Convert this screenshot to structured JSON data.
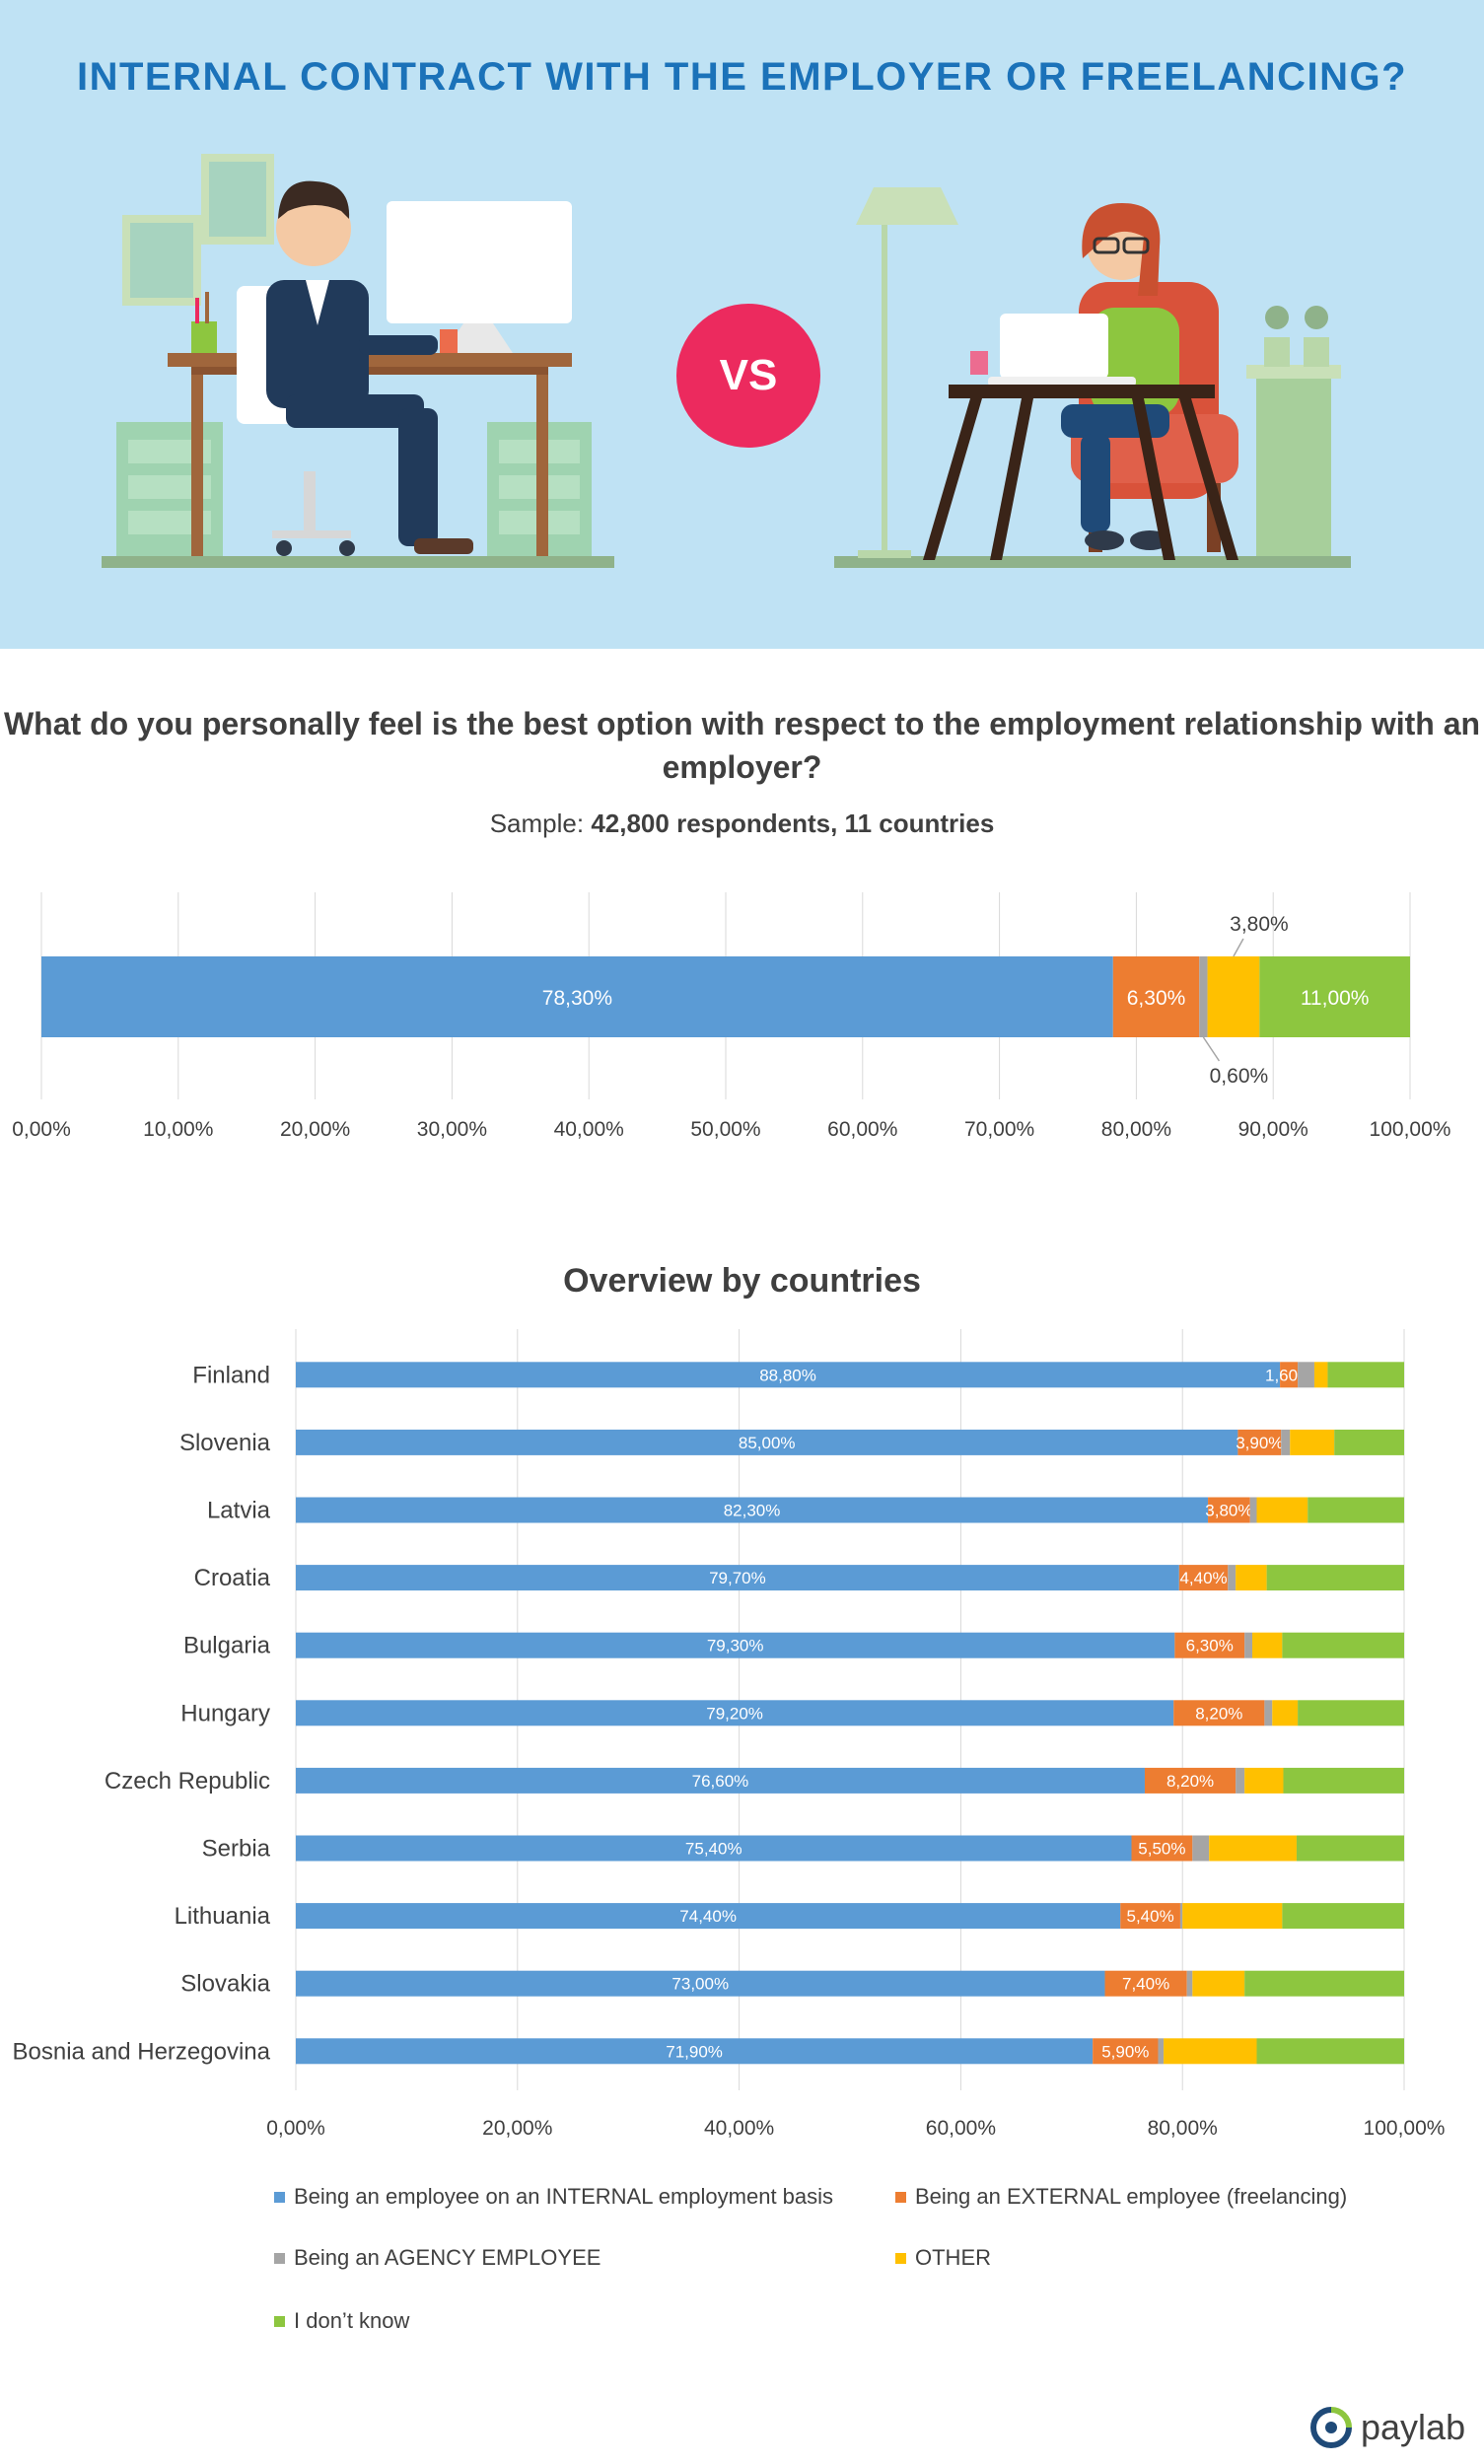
{
  "title": "INTERNAL CONTRACT WITH THE EMPLOYER OR FREELANCING?",
  "vs_label": "VS",
  "question": "What do you personally feel is the best option with respect to the employment relationship with an employer?",
  "sample_label": "Sample:",
  "sample_value": "42,800 respondents, 11 countries",
  "overview_title": "Overview by countries",
  "logo_text": "paylab",
  "colors": {
    "internal": "#5b9bd5",
    "external": "#ed7d31",
    "agency": "#a5a5a5",
    "other": "#ffc000",
    "dontknow": "#8dc63f",
    "title_blue": "#1b72b9",
    "vs_pink": "#ec2a5e",
    "hero_bg": "#bfe2f4"
  },
  "legend": [
    {
      "key": "internal",
      "label": "Being an employee on an INTERNAL employment basis"
    },
    {
      "key": "external",
      "label": "Being an EXTERNAL employee (freelancing)"
    },
    {
      "key": "agency",
      "label": "Being an AGENCY EMPLOYEE"
    },
    {
      "key": "other",
      "label": "OTHER"
    },
    {
      "key": "dontknow",
      "label": "I don’t know"
    }
  ],
  "chart_data": [
    {
      "type": "bar",
      "orientation": "horizontal-stacked",
      "title": "",
      "xlim": [
        0,
        100
      ],
      "x_ticks": [
        "0,00%",
        "10,00%",
        "20,00%",
        "30,00%",
        "40,00%",
        "50,00%",
        "60,00%",
        "70,00%",
        "80,00%",
        "90,00%",
        "100,00%"
      ],
      "grid": true,
      "series": [
        {
          "key": "internal",
          "value": 78.3,
          "label": "78,30%"
        },
        {
          "key": "external",
          "value": 6.3,
          "label": "6,30%"
        },
        {
          "key": "agency",
          "value": 0.6,
          "label": "0,60%"
        },
        {
          "key": "other",
          "value": 3.8,
          "label": "3,80%"
        },
        {
          "key": "dontknow",
          "value": 11.0,
          "label": "11,00%"
        }
      ]
    },
    {
      "type": "bar",
      "orientation": "horizontal-stacked",
      "title": "Overview by countries",
      "xlim": [
        0,
        100
      ],
      "x_ticks": [
        "0,00%",
        "20,00%",
        "40,00%",
        "60,00%",
        "80,00%",
        "100,00%"
      ],
      "grid": true,
      "legend": "bottom",
      "categories": [
        "Finland",
        "Slovenia",
        "Latvia",
        "Croatia",
        "Bulgaria",
        "Hungary",
        "Czech Republic",
        "Serbia",
        "Lithuania",
        "Slovakia",
        "Bosnia and Herzegovina"
      ],
      "series": [
        {
          "key": "internal",
          "values": [
            88.8,
            85.0,
            82.3,
            79.7,
            79.3,
            79.2,
            76.6,
            75.4,
            74.4,
            73.0,
            71.9
          ],
          "labels": [
            "88,80%",
            "85,00%",
            "82,30%",
            "79,70%",
            "79,30%",
            "79,20%",
            "76,60%",
            "75,40%",
            "74,40%",
            "73,00%",
            "71,90%"
          ]
        },
        {
          "key": "external",
          "values": [
            1.6,
            3.9,
            3.8,
            4.4,
            6.3,
            8.2,
            8.2,
            5.5,
            5.4,
            7.4,
            5.9
          ],
          "labels": [
            "1,60%",
            "3,90%",
            "3,80%",
            "4,40%",
            "6,30%",
            "8,20%",
            "8,20%",
            "5,50%",
            "5,40%",
            "7,40%",
            "5,90%"
          ]
        },
        {
          "key": "agency",
          "values": [
            1.5,
            0.8,
            0.6,
            0.7,
            0.7,
            0.7,
            0.8,
            1.5,
            0.2,
            0.5,
            0.5
          ]
        },
        {
          "key": "other",
          "values": [
            1.2,
            4.0,
            4.6,
            2.8,
            2.7,
            2.3,
            3.5,
            7.9,
            9.0,
            4.7,
            8.4
          ]
        },
        {
          "key": "dontknow",
          "values": [
            6.9,
            6.3,
            8.7,
            12.4,
            11.0,
            9.6,
            10.9,
            9.7,
            11.0,
            14.4,
            13.3
          ]
        }
      ]
    }
  ]
}
